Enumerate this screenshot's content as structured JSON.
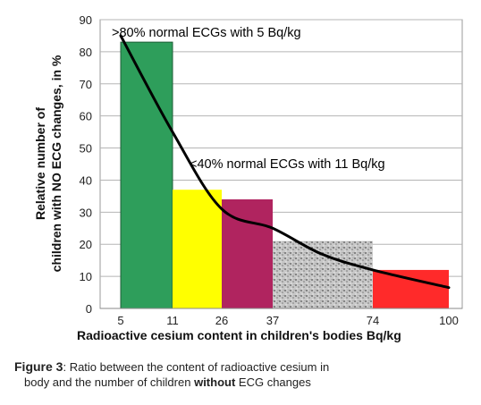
{
  "chart_data": {
    "type": "bar",
    "categories": [
      "5",
      "11",
      "26",
      "37",
      "74",
      "100"
    ],
    "bars": [
      {
        "x0": 5,
        "x1": 11,
        "value": 83,
        "color": "#2e9e5b",
        "pattern": "none"
      },
      {
        "x0": 11,
        "x1": 26,
        "value": 37,
        "color": "#ffff00",
        "pattern": "none"
      },
      {
        "x0": 26,
        "x1": 37,
        "value": 34,
        "color": "#b0245f",
        "pattern": "none"
      },
      {
        "x0": 37,
        "x1": 74,
        "value": 21,
        "color": "#b8b8b8",
        "pattern": "speckled"
      },
      {
        "x0": 74,
        "x1": 100,
        "value": 12,
        "color": "#ff2a2a",
        "pattern": "none"
      }
    ],
    "curve": {
      "x": [
        5,
        11,
        26,
        37,
        55,
        74,
        100
      ],
      "y": [
        85,
        55,
        31,
        25,
        17,
        12,
        6.5
      ],
      "color": "#000000"
    },
    "x_ticks": [
      "5",
      "11",
      "26",
      "37",
      "74",
      "100"
    ],
    "y_ticks": [
      0,
      10,
      20,
      30,
      40,
      50,
      60,
      70,
      80,
      90
    ],
    "ylim": [
      0,
      90
    ],
    "xlabel": "Radioactive cesium content in children's bodies Bq/kg",
    "ylabel_line1": "Relative number of",
    "ylabel_line2": "children with NO ECG changes, in %",
    "grid": true,
    "annotations": [
      {
        "text": ">80% normal ECGs with 5 Bq/kg"
      },
      {
        "text": "<40% normal ECGs with 11 Bq/kg"
      }
    ]
  },
  "caption": {
    "figure_label": "Figure 3",
    "text_part1": ": Ratio between the content of radioactive cesium in",
    "text_part2": "body and the number of children ",
    "text_bold": "without",
    "text_part3": " ECG changes"
  }
}
